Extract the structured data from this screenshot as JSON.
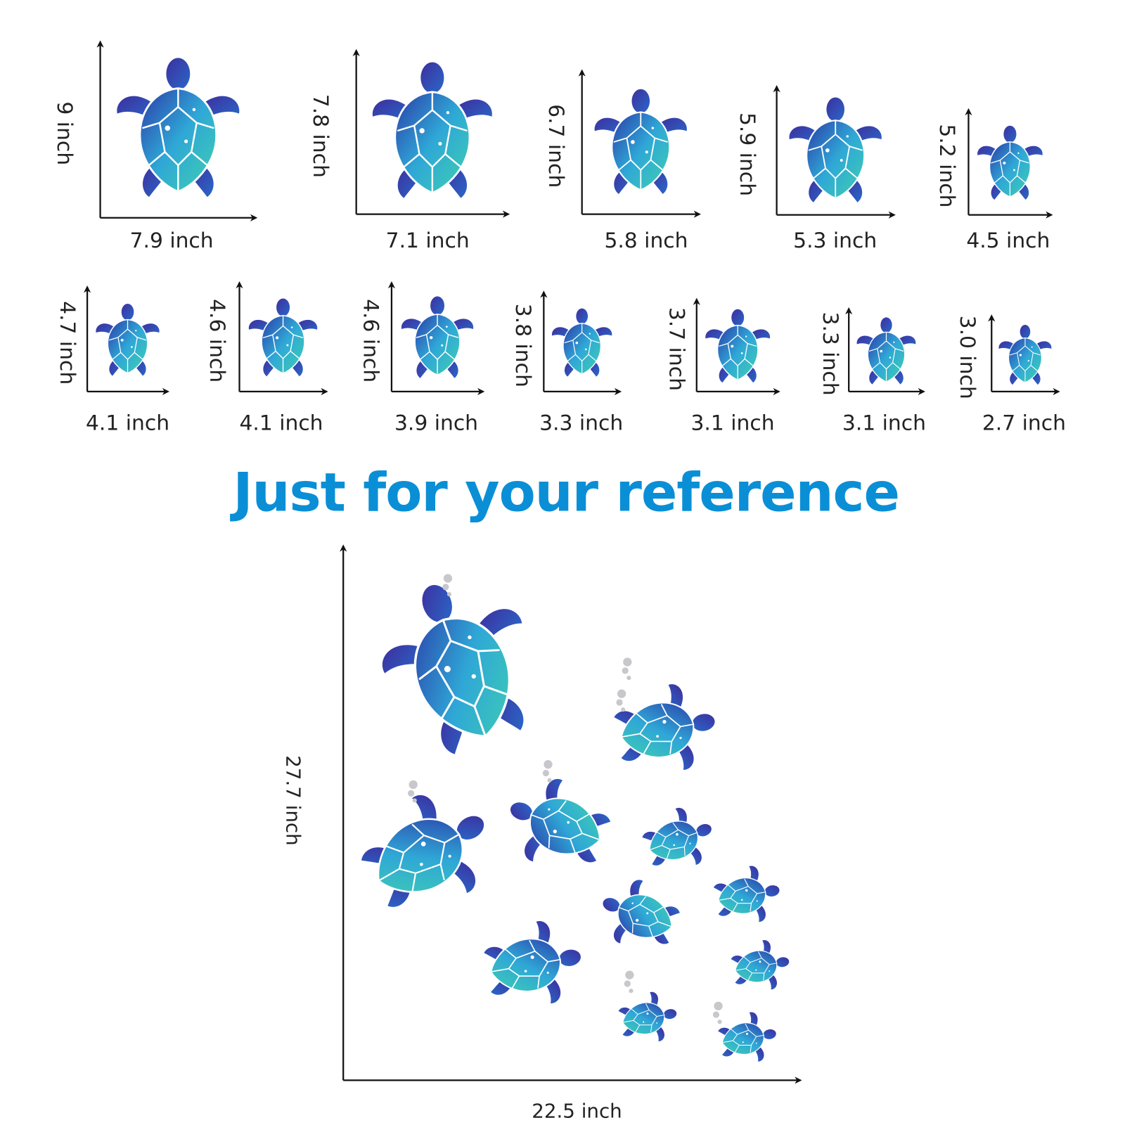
{
  "sets": [
    {
      "items": [
        {
          "height": "9 inch",
          "width": "7.9 inch"
        },
        {
          "height": "7.8 inch",
          "width": "7.1 inch"
        },
        {
          "height": "6.7 inch",
          "width": "5.8 inch"
        },
        {
          "height": "5.9 inch",
          "width": "5.3 inch"
        },
        {
          "height": "5.2 inch",
          "width": "4.5 inch"
        }
      ]
    },
    {
      "items": [
        {
          "height": "4.7 inch",
          "width": "4.1 inch"
        },
        {
          "height": "4.6 inch",
          "width": "4.1 inch"
        },
        {
          "height": "4.6 inch",
          "width": "3.9 inch"
        },
        {
          "height": "3.8 inch",
          "width": "3.3 inch"
        },
        {
          "height": "3.7 inch",
          "width": "3.1 inch"
        },
        {
          "height": "3.3 inch",
          "width": "3.1 inch"
        },
        {
          "height": "3.0 inch",
          "width": "2.7 inch"
        }
      ]
    }
  ],
  "title": "Just for your reference",
  "reference": {
    "height": "27.7 inch",
    "width": "22.5 inch"
  }
}
